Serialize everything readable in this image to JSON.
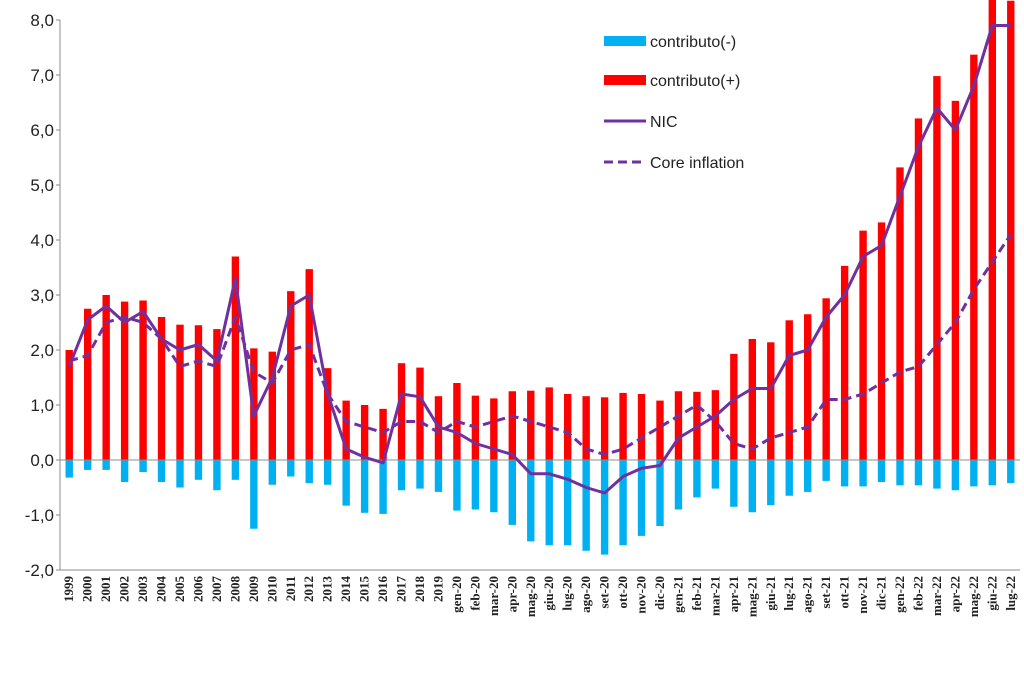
{
  "chart_data": {
    "type": "bar",
    "title": "",
    "xlabel": "",
    "ylabel": "",
    "ylim": [
      -2.0,
      8.0
    ],
    "yticks": [
      "-2,0",
      "-1,0",
      "0,0",
      "1,0",
      "2,0",
      "3,0",
      "4,0",
      "5,0",
      "6,0",
      "7,0",
      "8,0"
    ],
    "ytick_values": [
      -2,
      -1,
      0,
      1,
      2,
      3,
      4,
      5,
      6,
      7,
      8
    ],
    "grid": false,
    "legend_position": "top-right",
    "categories": [
      "1999",
      "2000",
      "2001",
      "2002",
      "2003",
      "2004",
      "2005",
      "2006",
      "2007",
      "2008",
      "2009",
      "2010",
      "2011",
      "2012",
      "2013",
      "2014",
      "2015",
      "2016",
      "2017",
      "2018",
      "2019",
      "gen-20",
      "feb-20",
      "mar-20",
      "apr-20",
      "mag-20",
      "giu-20",
      "lug-20",
      "ago-20",
      "set-20",
      "ott-20",
      "nov-20",
      "dic-20",
      "gen-21",
      "feb-21",
      "mar-21",
      "apr-21",
      "mag-21",
      "giu-21",
      "lug-21",
      "ago-21",
      "set-21",
      "ott-21",
      "nov-21",
      "dic-21",
      "gen-22",
      "feb-22",
      "mar-22",
      "apr-22",
      "mag-22",
      "giu-22",
      "lug-22"
    ],
    "series": [
      {
        "name": "contributo(-)",
        "kind": "bar",
        "color": "#00B0F0",
        "values": [
          -0.32,
          -0.18,
          -0.18,
          -0.4,
          -0.22,
          -0.4,
          -0.5,
          -0.36,
          -0.55,
          -0.36,
          -1.25,
          -0.45,
          -0.3,
          -0.42,
          -0.45,
          -0.83,
          -0.96,
          -0.98,
          -0.55,
          -0.52,
          -0.58,
          -0.92,
          -0.9,
          -0.95,
          -1.18,
          -1.48,
          -1.55,
          -1.55,
          -1.65,
          -1.72,
          -1.55,
          -1.38,
          -1.2,
          -0.9,
          -0.68,
          -0.52,
          -0.85,
          -0.95,
          -0.82,
          -0.65,
          -0.58,
          -0.38,
          -0.48,
          -0.48,
          -0.4,
          -0.46,
          -0.46,
          -0.52,
          -0.55,
          -0.48,
          -0.46,
          -0.42
        ]
      },
      {
        "name": "contributo(+)",
        "kind": "bar",
        "color": "#FF0000",
        "values": [
          2.0,
          2.75,
          3.0,
          2.88,
          2.9,
          2.6,
          2.46,
          2.45,
          2.38,
          3.7,
          2.03,
          1.97,
          3.07,
          3.47,
          1.67,
          1.08,
          1.0,
          0.93,
          1.76,
          1.68,
          1.16,
          1.4,
          1.17,
          1.12,
          1.25,
          1.26,
          1.32,
          1.2,
          1.16,
          1.14,
          1.22,
          1.2,
          1.08,
          1.25,
          1.24,
          1.27,
          1.93,
          2.2,
          2.14,
          2.54,
          2.65,
          2.94,
          3.53,
          4.17,
          4.32,
          5.32,
          6.21,
          6.98,
          6.53,
          7.37,
          8.43,
          8.35
        ]
      },
      {
        "name": "NIC",
        "kind": "line",
        "style": "solid",
        "color": "#7030A0",
        "values": [
          1.7,
          2.55,
          2.8,
          2.5,
          2.7,
          2.2,
          2.0,
          2.1,
          1.8,
          3.3,
          0.8,
          1.5,
          2.8,
          3.0,
          1.2,
          0.2,
          0.05,
          -0.05,
          1.2,
          1.15,
          0.6,
          0.5,
          0.3,
          0.2,
          0.1,
          -0.25,
          -0.25,
          -0.35,
          -0.5,
          -0.6,
          -0.3,
          -0.15,
          -0.1,
          0.4,
          0.6,
          0.8,
          1.1,
          1.3,
          1.3,
          1.9,
          2.0,
          2.6,
          3.0,
          3.7,
          3.9,
          4.8,
          5.7,
          6.4,
          6.0,
          6.8,
          7.9,
          7.9
        ]
      },
      {
        "name": "Core inflation",
        "kind": "line",
        "style": "dashed",
        "color": "#7030A0",
        "values": [
          1.8,
          1.9,
          2.5,
          2.6,
          2.5,
          2.2,
          1.7,
          1.8,
          1.7,
          2.6,
          1.6,
          1.4,
          2.0,
          2.1,
          1.2,
          0.7,
          0.6,
          0.5,
          0.7,
          0.7,
          0.5,
          0.7,
          0.6,
          0.7,
          0.8,
          0.7,
          0.6,
          0.5,
          0.2,
          0.1,
          0.2,
          0.4,
          0.6,
          0.8,
          1.0,
          0.7,
          0.3,
          0.2,
          0.4,
          0.5,
          0.6,
          1.1,
          1.1,
          1.2,
          1.4,
          1.6,
          1.7,
          2.1,
          2.5,
          3.1,
          3.6,
          4.1
        ]
      }
    ],
    "legend": [
      {
        "label": "contributo(-)",
        "kind": "bar",
        "color": "#00B0F0"
      },
      {
        "label": "contributo(+)",
        "kind": "bar",
        "color": "#FF0000"
      },
      {
        "label": "NIC",
        "kind": "line",
        "style": "solid",
        "color": "#7030A0"
      },
      {
        "label": "Core inflation",
        "kind": "line",
        "style": "dashed",
        "color": "#7030A0"
      }
    ]
  }
}
